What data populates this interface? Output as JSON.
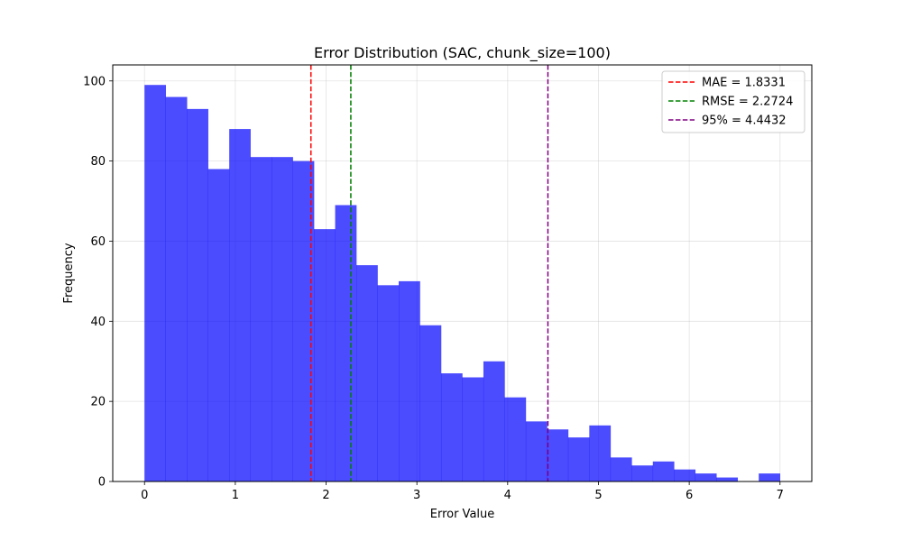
{
  "chart_data": {
    "type": "bar",
    "title": "Error Distribution (SAC, chunk_size=100)",
    "xlabel": "Error Value",
    "ylabel": "Frequency",
    "xlim": [
      -0.35,
      7.35
    ],
    "ylim": [
      0,
      104
    ],
    "xticks": [
      0,
      1,
      2,
      3,
      4,
      5,
      6,
      7
    ],
    "yticks": [
      0,
      20,
      40,
      60,
      80,
      100
    ],
    "grid": true,
    "legend_position": "top-right",
    "bar_color": "#0000ff",
    "bar_alpha": 0.7,
    "bins": {
      "start": 0,
      "width": 0.2333,
      "values": [
        99,
        96,
        93,
        78,
        88,
        81,
        81,
        80,
        63,
        69,
        54,
        49,
        50,
        39,
        27,
        26,
        30,
        21,
        15,
        13,
        11,
        14,
        6,
        4,
        5,
        3,
        2,
        1,
        0,
        2
      ]
    },
    "reference_lines": [
      {
        "label": "MAE = 1.8331",
        "x": 1.8331,
        "color": "#ff0000"
      },
      {
        "label": "RMSE = 2.2724",
        "x": 2.2724,
        "color": "#008000"
      },
      {
        "label": "95% = 4.4432",
        "x": 4.4432,
        "color": "#800080"
      }
    ]
  }
}
